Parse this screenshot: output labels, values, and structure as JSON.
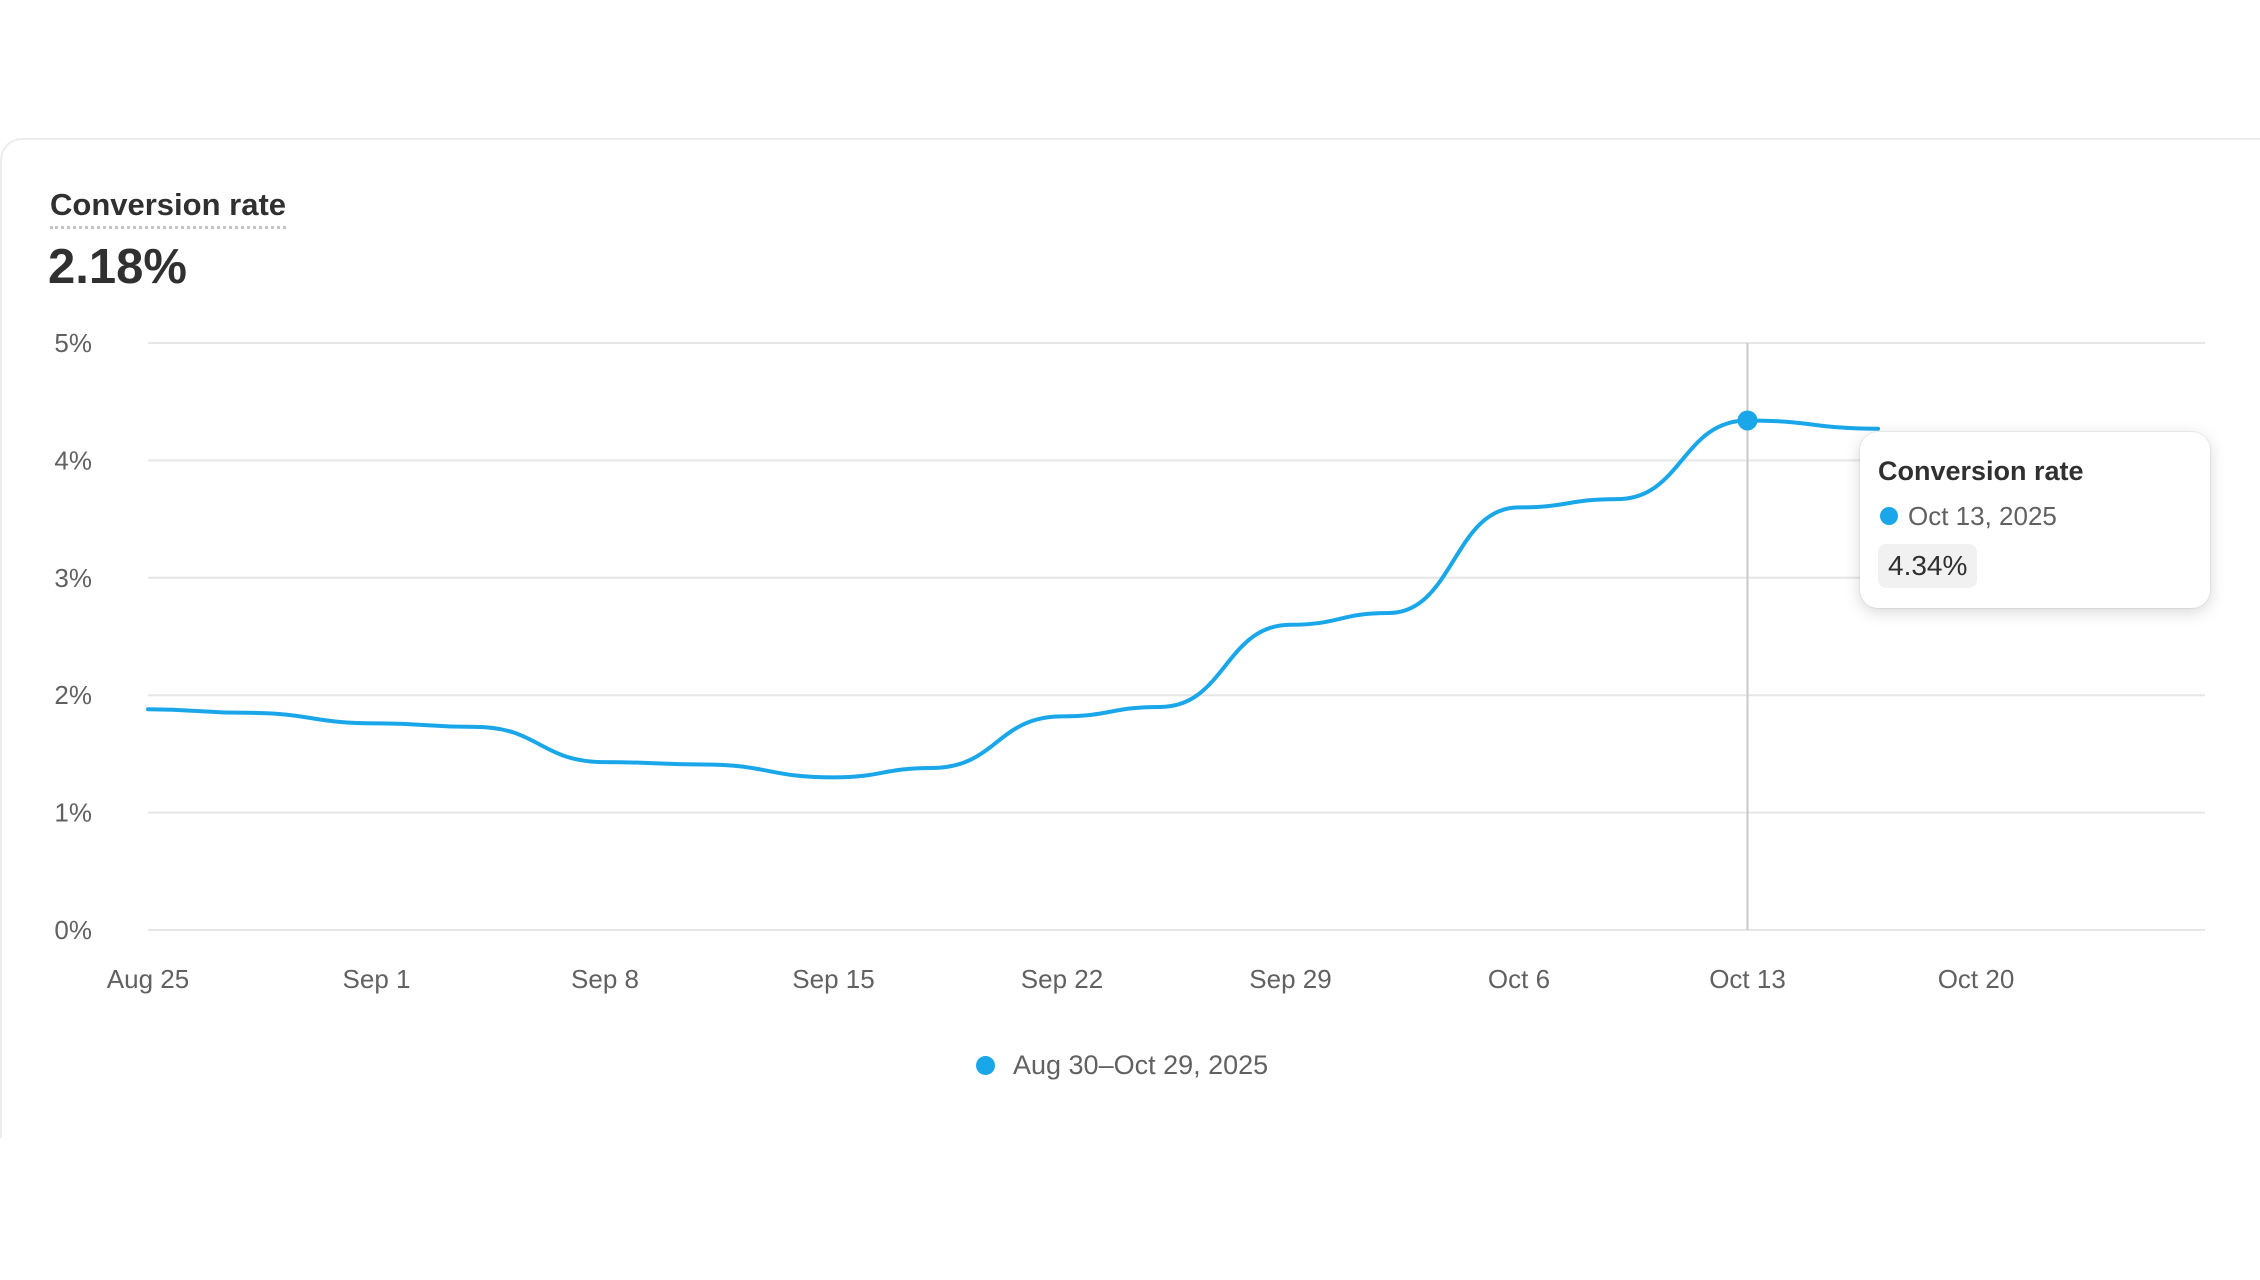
{
  "metric": {
    "title": "Conversion rate",
    "value": "2.18%"
  },
  "tooltip": {
    "title": "Conversion rate",
    "date": "Oct 13, 2025",
    "value": "4.34%"
  },
  "legend": {
    "label": "Aug 30–Oct 29, 2025"
  },
  "colors": {
    "series": "#1aa7ea",
    "grid": "#e6e6e6",
    "crosshair": "#c9c9c9",
    "tick_text": "#616161"
  },
  "chart_data": {
    "type": "line",
    "title": "Conversion rate",
    "xlabel": "",
    "ylabel": "",
    "x_ticks": [
      "Aug 25",
      "Sep 1",
      "Sep 8",
      "Sep 15",
      "Sep 22",
      "Sep 29",
      "Oct 6",
      "Oct 13",
      "Oct 20"
    ],
    "y_ticks": [
      "0%",
      "1%",
      "2%",
      "3%",
      "4%",
      "5%"
    ],
    "ylim": [
      0,
      5
    ],
    "xlim": [
      "2025-08-25",
      "2025-10-29"
    ],
    "grid": true,
    "legend_position": "bottom",
    "series": [
      {
        "name": "Aug 30–Oct 29, 2025",
        "x": [
          "2025-08-25",
          "2025-08-28",
          "2025-09-01",
          "2025-09-04",
          "2025-09-08",
          "2025-09-11",
          "2025-09-15",
          "2025-09-18",
          "2025-09-22",
          "2025-09-25",
          "2025-09-29",
          "2025-10-02",
          "2025-10-06",
          "2025-10-09",
          "2025-10-13",
          "2025-10-17"
        ],
        "values": [
          1.88,
          1.85,
          1.76,
          1.73,
          1.43,
          1.41,
          1.3,
          1.38,
          1.82,
          1.9,
          2.6,
          2.7,
          3.6,
          3.67,
          4.34,
          4.27
        ]
      }
    ],
    "highlight": {
      "x": "2025-10-13",
      "value": 4.34
    }
  }
}
